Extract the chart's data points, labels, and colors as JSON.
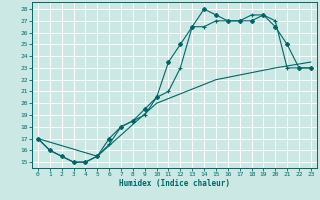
{
  "xlabel": "Humidex (Indice chaleur)",
  "bg_color": "#cce8e4",
  "grid_color": "#ffffff",
  "line_color": "#006666",
  "xlim": [
    -0.5,
    23.5
  ],
  "ylim": [
    14.5,
    28.6
  ],
  "xticks": [
    0,
    1,
    2,
    3,
    4,
    5,
    6,
    7,
    8,
    9,
    10,
    11,
    12,
    13,
    14,
    15,
    16,
    17,
    18,
    19,
    20,
    21,
    22,
    23
  ],
  "yticks": [
    15,
    16,
    17,
    18,
    19,
    20,
    21,
    22,
    23,
    24,
    25,
    26,
    27,
    28
  ],
  "series1_x": [
    0,
    1,
    2,
    3,
    4,
    5,
    6,
    7,
    8,
    9,
    10,
    11,
    12,
    13,
    14,
    15,
    16,
    17,
    18,
    19,
    20,
    21,
    22,
    23
  ],
  "series1_y": [
    17,
    16,
    15.5,
    15,
    15,
    15.5,
    17,
    18,
    18.5,
    19.5,
    20.5,
    23.5,
    25,
    26.5,
    28,
    27.5,
    27,
    27,
    27,
    27.5,
    26.5,
    25,
    23,
    23
  ],
  "series2_x": [
    0,
    1,
    2,
    3,
    4,
    5,
    6,
    7,
    8,
    9,
    10,
    11,
    12,
    13,
    14,
    15,
    16,
    17,
    18,
    19,
    20,
    21,
    22,
    23
  ],
  "series2_y": [
    17,
    16,
    15.5,
    15,
    15,
    15.5,
    16.5,
    18,
    18.5,
    19,
    20.5,
    21,
    23,
    26.5,
    26.5,
    27,
    27,
    27,
    27.5,
    27.5,
    27,
    23,
    23,
    23
  ],
  "series3_x": [
    0,
    5,
    10,
    15,
    20,
    23
  ],
  "series3_y": [
    17,
    15.5,
    20,
    22,
    23,
    23.5
  ]
}
